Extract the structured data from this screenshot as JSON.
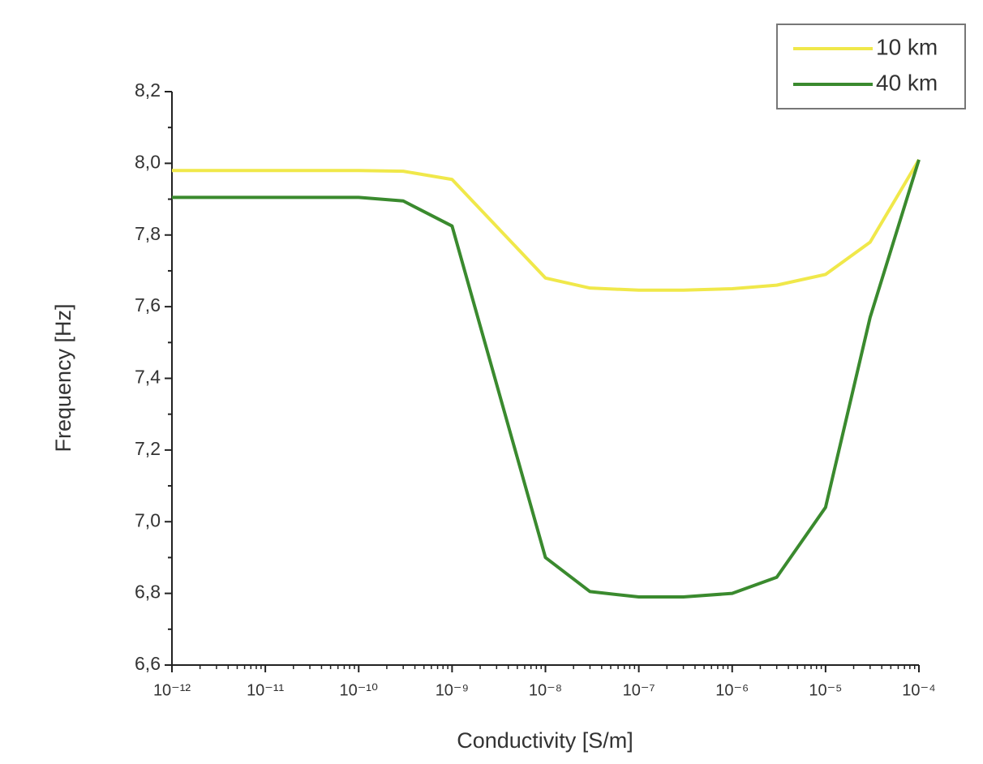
{
  "chart_data": {
    "type": "line",
    "xlabel": "Conductivity [S/m]",
    "ylabel": "Frequency [Hz]",
    "xscale": "log",
    "x": [
      1e-12,
      1e-11,
      1e-10,
      3e-10,
      1e-09,
      1e-08,
      3e-08,
      1e-07,
      3e-07,
      1e-06,
      3e-06,
      1e-05,
      3e-05,
      0.0001
    ],
    "series": [
      {
        "name": "10 km",
        "color": "#f0e84a",
        "values": [
          7.98,
          7.98,
          7.98,
          7.978,
          7.955,
          7.68,
          7.652,
          7.646,
          7.646,
          7.65,
          7.66,
          7.69,
          7.78,
          8.01
        ]
      },
      {
        "name": "40 km",
        "color": "#3a8a2e",
        "values": [
          7.905,
          7.905,
          7.905,
          7.895,
          7.825,
          6.9,
          6.805,
          6.79,
          6.79,
          6.8,
          6.845,
          7.04,
          7.57,
          8.01
        ]
      }
    ],
    "xlim": [
      1e-12,
      0.0001
    ],
    "xticks": [
      {
        "value": 1e-12,
        "label": "10⁻¹²"
      },
      {
        "value": 1e-11,
        "label": "10⁻¹¹"
      },
      {
        "value": 1e-10,
        "label": "10⁻¹⁰"
      },
      {
        "value": 1e-09,
        "label": "10⁻⁹"
      },
      {
        "value": 1e-08,
        "label": "10⁻⁸"
      },
      {
        "value": 1e-07,
        "label": "10⁻⁷"
      },
      {
        "value": 1e-06,
        "label": "10⁻⁶"
      },
      {
        "value": 1e-05,
        "label": "10⁻⁵"
      },
      {
        "value": 0.0001,
        "label": "10⁻⁴"
      }
    ],
    "ylim": [
      6.6,
      8.2
    ],
    "yticks": [
      {
        "value": 6.6,
        "label": "6,6"
      },
      {
        "value": 6.8,
        "label": "6,8"
      },
      {
        "value": 7.0,
        "label": "7,0"
      },
      {
        "value": 7.2,
        "label": "7,2"
      },
      {
        "value": 7.4,
        "label": "7,4"
      },
      {
        "value": 7.6,
        "label": "7,6"
      },
      {
        "value": 7.8,
        "label": "7,8"
      },
      {
        "value": 8.0,
        "label": "8,0"
      },
      {
        "value": 8.2,
        "label": "8,2"
      }
    ],
    "legend": "top-right"
  }
}
